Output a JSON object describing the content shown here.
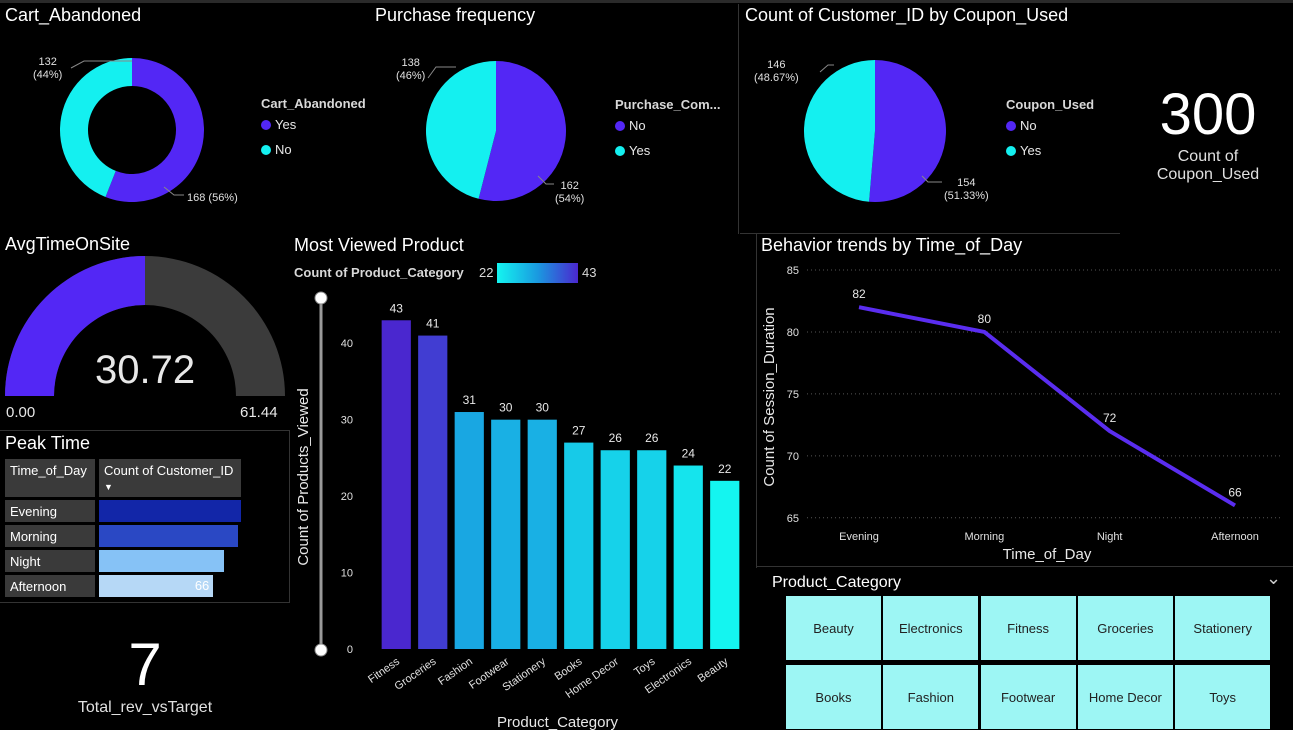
{
  "colors": {
    "purple": "#5327f5",
    "cyan": "#14f0f0",
    "gauge_bg": "#3b3b3b",
    "line": "#5a2df0",
    "slicer": "#9df6f4"
  },
  "cart": {
    "title": "Cart_Abandoned",
    "legend_title": "Cart_Abandoned",
    "legend": [
      "Yes",
      "No"
    ],
    "label_no": [
      "132",
      "(44%)"
    ],
    "label_yes": "168 (56%)"
  },
  "purchase": {
    "title": "Purchase frequency",
    "legend_title": "Purchase_Com...",
    "legend": [
      "No",
      "Yes"
    ],
    "label_a": [
      "138",
      "(46%)"
    ],
    "label_b": [
      "162",
      "(54%)"
    ]
  },
  "coupon": {
    "title": "Count of Customer_ID by Coupon_Used",
    "legend_title": "Coupon_Used",
    "legend": [
      "No",
      "Yes"
    ],
    "label_a": [
      "146",
      "(48.67%)"
    ],
    "label_b": [
      "154",
      "(51.33%)"
    ]
  },
  "kpi_coupon": {
    "value": "300",
    "label_line1": "Count of",
    "label_line2": "Coupon_Used"
  },
  "gauge": {
    "title": "AvgTimeOnSite",
    "value": "30.72",
    "min": "0.00",
    "max": "61.44",
    "value_num": 30.72,
    "max_num": 61.44
  },
  "peak": {
    "title": "Peak Time",
    "col1": "Time_of_Day",
    "col2": "Count of Customer_ID",
    "sort_icon": "▼",
    "rows": [
      {
        "name": "Evening",
        "value": 82,
        "color": "#1226a8",
        "label": ""
      },
      {
        "name": "Morning",
        "value": 80,
        "color": "#2a48c4",
        "label": ""
      },
      {
        "name": "Night",
        "value": 72,
        "color": "#86c2f6",
        "label": ""
      },
      {
        "name": "Afternoon",
        "value": 66,
        "color": "#b6d8f6",
        "label": "66"
      }
    ]
  },
  "kpi_rev": {
    "value": "7",
    "label": "Total_rev_vsTarget"
  },
  "bar": {
    "title": "Most Viewed Product",
    "legend_label": "Count of Product_Category",
    "legend_min": "22",
    "legend_max": "43"
  },
  "line": {
    "title": "Behavior trends by Time_of_Day"
  },
  "slicer": {
    "title": "Product_Category",
    "chevron": "⌄",
    "items": [
      "Beauty",
      "Electronics",
      "Fitness",
      "Groceries",
      "Stationery",
      "Books",
      "Fashion",
      "Footwear",
      "Home Decor",
      "Toys"
    ]
  },
  "chart_data": [
    {
      "type": "pie",
      "title": "Cart_Abandoned",
      "donut": true,
      "categories": [
        "Yes",
        "No"
      ],
      "values": [
        168,
        132
      ],
      "percents": [
        56,
        44
      ]
    },
    {
      "type": "pie",
      "title": "Purchase frequency",
      "categories": [
        "No",
        "Yes"
      ],
      "values": [
        162,
        138
      ],
      "percents": [
        54,
        46
      ]
    },
    {
      "type": "pie",
      "title": "Count of Customer_ID by Coupon_Used",
      "categories": [
        "No",
        "Yes"
      ],
      "values": [
        154,
        146
      ],
      "percents": [
        51.33,
        48.67
      ]
    },
    {
      "type": "bar",
      "title": "Most Viewed Product",
      "categories": [
        "Fitness",
        "Groceries",
        "Fashion",
        "Footwear",
        "Stationery",
        "Books",
        "Home Decor",
        "Toys",
        "Electronics",
        "Beauty"
      ],
      "values": [
        43,
        41,
        31,
        30,
        30,
        27,
        26,
        26,
        24,
        22
      ],
      "xlabel": "Product_Category",
      "ylabel": "Count of Products_Viewed",
      "ylim": [
        0,
        45
      ],
      "yticks": [
        0,
        10,
        20,
        30,
        40
      ]
    },
    {
      "type": "line",
      "title": "Behavior trends by Time_of_Day",
      "categories": [
        "Evening",
        "Morning",
        "Night",
        "Afternoon"
      ],
      "values": [
        82,
        80,
        72,
        66
      ],
      "xlabel": "Time_of_Day",
      "ylabel": "Count of Session_Duration",
      "ylim": [
        64,
        86
      ],
      "yticks": [
        65,
        70,
        75,
        80,
        85
      ]
    }
  ]
}
